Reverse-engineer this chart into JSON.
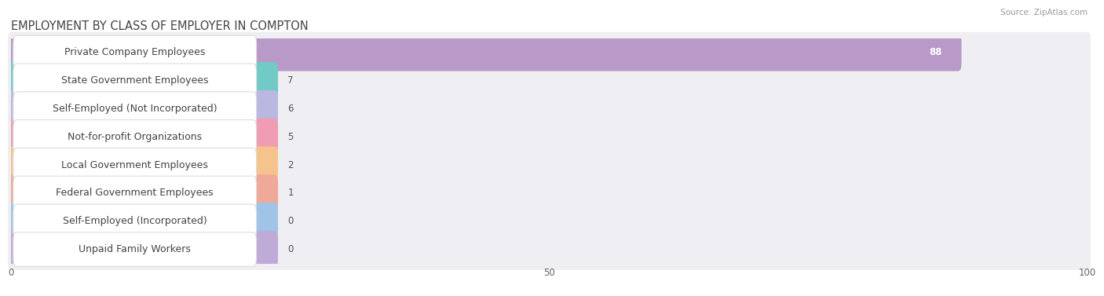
{
  "title": "EMPLOYMENT BY CLASS OF EMPLOYER IN COMPTON",
  "source": "Source: ZipAtlas.com",
  "categories": [
    "Private Company Employees",
    "State Government Employees",
    "Self-Employed (Not Incorporated)",
    "Not-for-profit Organizations",
    "Local Government Employees",
    "Federal Government Employees",
    "Self-Employed (Incorporated)",
    "Unpaid Family Workers"
  ],
  "values": [
    88,
    7,
    6,
    5,
    2,
    1,
    0,
    0
  ],
  "bar_colors": [
    "#b899c8",
    "#72cac6",
    "#b8b8e0",
    "#f09cb4",
    "#f5c48c",
    "#f0a898",
    "#a0c4e8",
    "#c0aad8"
  ],
  "row_bg_color": "#eeeef3",
  "white_bg": "#ffffff",
  "xlim": [
    0,
    100
  ],
  "xticks": [
    0,
    50,
    100
  ],
  "label_fontsize": 9,
  "value_fontsize": 8.5,
  "title_fontsize": 10.5,
  "fig_bg_color": "#ffffff",
  "grid_color": "#cccccc",
  "title_color": "#444444",
  "source_color": "#999999"
}
